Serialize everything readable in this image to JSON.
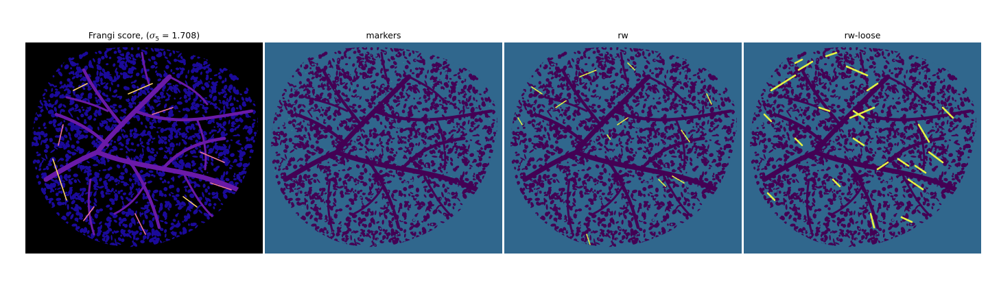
{
  "panels": [
    {
      "id": "frangi",
      "title_prefix": "Frangi score, (",
      "title_symbol": "σ",
      "title_subscript": "5",
      "title_suffix": " = 1.708)",
      "background_color": "#000000",
      "texture_color": "#1b0a9a",
      "vessel_color": "#6a1aa8",
      "highlight_color": "#f0779a",
      "bright_color": "#ffd36b"
    },
    {
      "id": "markers",
      "title": "markers",
      "background_color": "#30678d",
      "texture_color": "#440154",
      "vessel_color": "#440154",
      "accent_color": "#2b8f8a"
    },
    {
      "id": "rw",
      "title": "rw",
      "background_color": "#30678d",
      "texture_color": "#440154",
      "vessel_color": "#440154",
      "accent_color": "#e7f542"
    },
    {
      "id": "rw-loose",
      "title": "rw-loose",
      "background_color": "#30678d",
      "texture_color": "#440154",
      "vessel_color": "#440154",
      "accent_color": "#e7f542"
    }
  ]
}
